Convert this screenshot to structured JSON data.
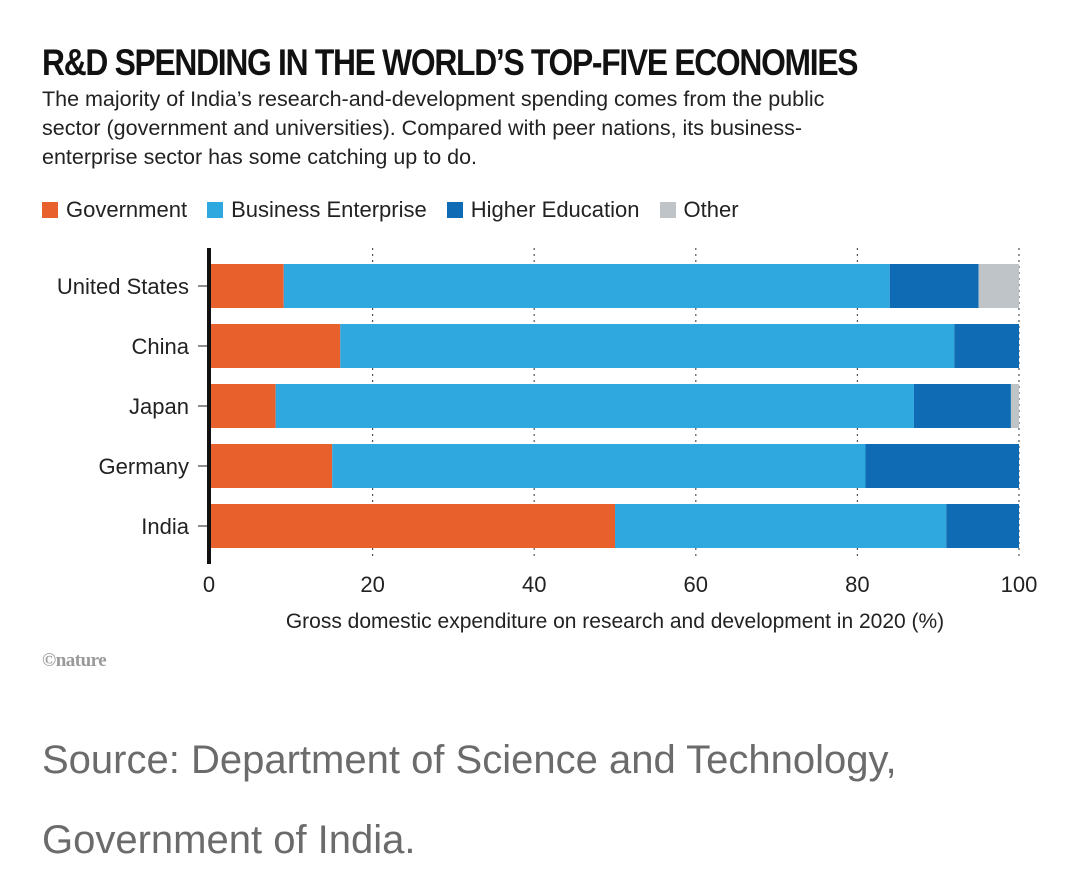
{
  "title": "R&D SPENDING IN THE WORLD’S TOP-FIVE ECONOMIES",
  "subtitle": "The majority of India’s research-and-development spending comes from the public sector (government and universities). Compared with peer nations, its business-enterprise sector has some catching up to do.",
  "logo_text": "©nature",
  "source_text": "Source: Department of Science and Technology, Government of India.",
  "chart_data": {
    "type": "bar",
    "orientation": "horizontal",
    "stacked": true,
    "categories": [
      "United States",
      "China",
      "Japan",
      "Germany",
      "India"
    ],
    "series": [
      {
        "name": "Government",
        "color": "#e8602c",
        "values": [
          9,
          16,
          8,
          15,
          50
        ]
      },
      {
        "name": "Business Enterprise",
        "color": "#2fa8e0",
        "values": [
          75,
          76,
          79,
          66,
          41
        ]
      },
      {
        "name": "Higher Education",
        "color": "#0e6bb4",
        "values": [
          11,
          8,
          12,
          19,
          9
        ]
      },
      {
        "name": "Other",
        "color": "#bfc4c9",
        "values": [
          5,
          0,
          1,
          0,
          0
        ]
      }
    ],
    "xlabel": "Gross domestic expenditure on research and development in 2020 (%)",
    "xlim": [
      0,
      100
    ],
    "xticks": [
      0,
      20,
      40,
      60,
      80,
      100
    ],
    "grid": "vertical dotted",
    "legend_position": "top"
  }
}
